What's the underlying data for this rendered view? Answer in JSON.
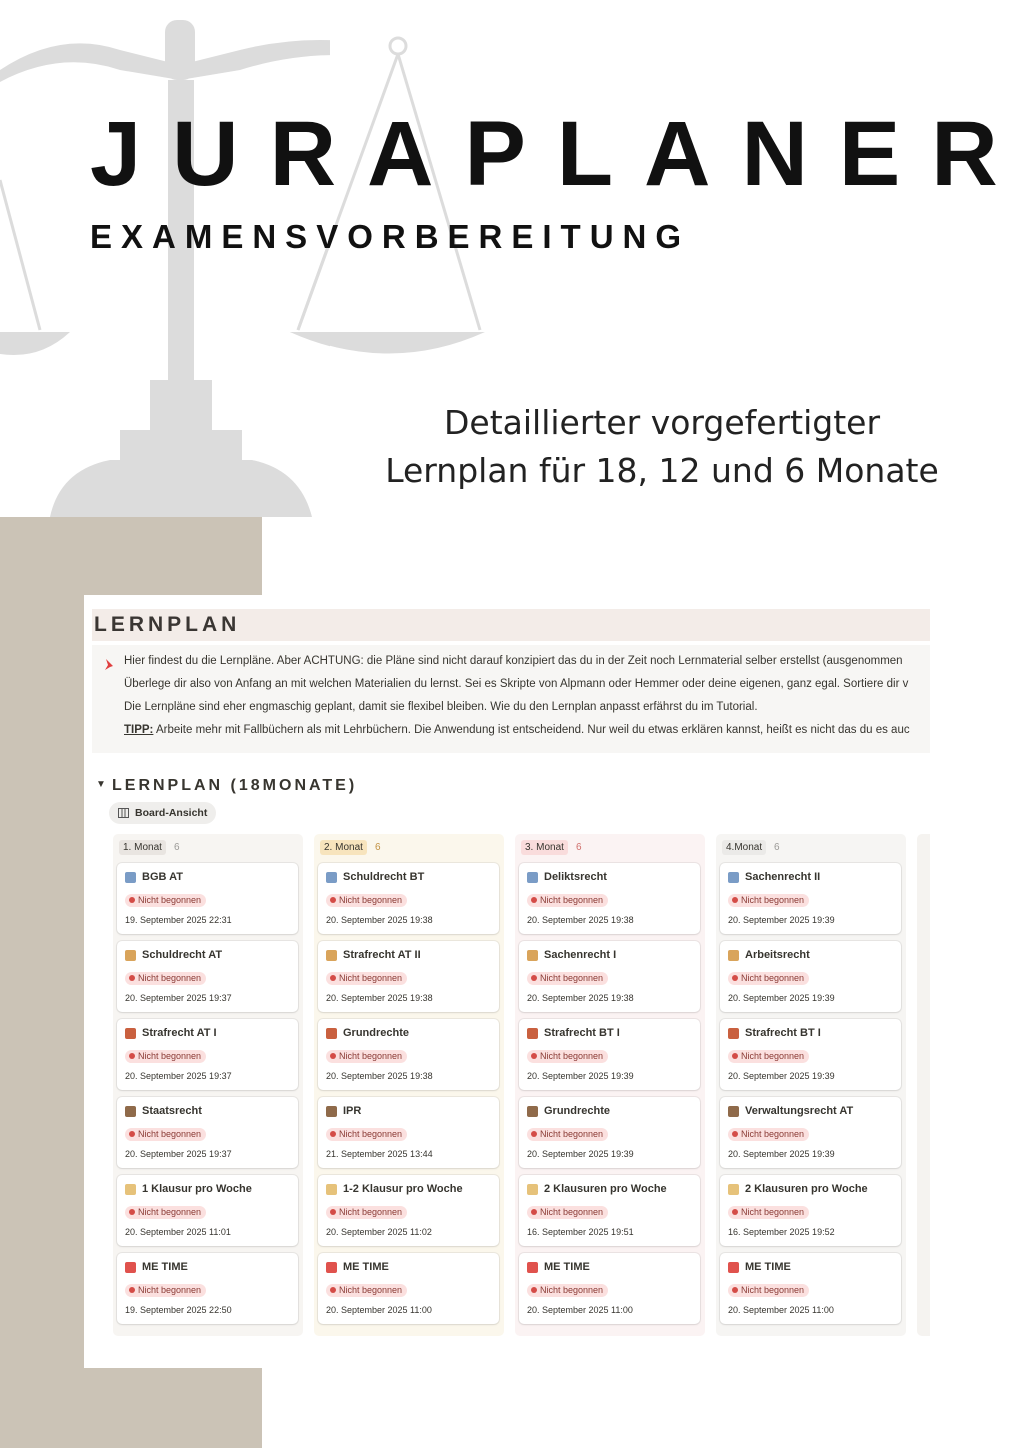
{
  "header": {
    "title": "JURAPLANER",
    "subtitle": "EXAMENSVORBEREITUNG",
    "tagline": [
      "Detaillierter vorgefertigter",
      "Lernplan für 18, 12 und 6 Monate"
    ]
  },
  "screenshot": {
    "heading": "LERNPLAN",
    "callout": {
      "lines": [
        "Hier findest du die Lernpläne. Aber ACHTUNG: die Pläne sind nicht darauf konzipiert das du in der Zeit noch Lernmaterial selber erstellst (ausgenommen",
        "Überlege dir also von Anfang an mit welchen Materialien du lernst. Sei es Skripte von Alpmann oder Hemmer oder deine eigenen, ganz egal. Sortiere dir v",
        "Die Lernpläne sind eher engmaschig geplant, damit sie flexibel bleiben. Wie du den Lernplan anpasst erfährst du im Tutorial."
      ],
      "tip_label": "TIPP:",
      "tip_text": "Arbeite mehr mit Fallbüchern als mit Lehrbüchern. Die Anwendung ist entscheidend. Nur weil du etwas erklären kannst, heißt es nicht das du es auc"
    },
    "section": "LERNPLAN (18MONATE)",
    "view": "Board-Ansicht",
    "columns": [
      {
        "name": "1. Monat",
        "count": 6,
        "cards": [
          {
            "title": "BGB AT",
            "status": "Nicht begonnen",
            "date": "19. September 2025 22:31"
          },
          {
            "title": "Schuldrecht AT",
            "status": "Nicht begonnen",
            "date": "20. September 2025 19:37"
          },
          {
            "title": "Strafrecht AT I",
            "status": "Nicht begonnen",
            "date": "20. September 2025 19:37"
          },
          {
            "title": "Staatsrecht",
            "status": "Nicht begonnen",
            "date": "20. September 2025 19:37"
          },
          {
            "title": "1 Klausur pro Woche",
            "status": "Nicht begonnen",
            "date": "20. September 2025 11:01"
          },
          {
            "title": "ME TIME",
            "status": "Nicht begonnen",
            "date": "19. September 2025 22:50"
          }
        ]
      },
      {
        "name": "2. Monat",
        "count": 6,
        "cards": [
          {
            "title": "Schuldrecht BT",
            "status": "Nicht begonnen",
            "date": "20. September 2025 19:38"
          },
          {
            "title": "Strafrecht AT II",
            "status": "Nicht begonnen",
            "date": "20. September 2025 19:38"
          },
          {
            "title": "Grundrechte",
            "status": "Nicht begonnen",
            "date": "20. September 2025 19:38"
          },
          {
            "title": "IPR",
            "status": "Nicht begonnen",
            "date": "21. September 2025 13:44"
          },
          {
            "title": "1-2 Klausur pro Woche",
            "status": "Nicht begonnen",
            "date": "20. September 2025 11:02"
          },
          {
            "title": "ME TIME",
            "status": "Nicht begonnen",
            "date": "20. September 2025 11:00"
          }
        ]
      },
      {
        "name": "3. Monat",
        "count": 6,
        "cards": [
          {
            "title": "Deliktsrecht",
            "status": "Nicht begonnen",
            "date": "20. September 2025 19:38"
          },
          {
            "title": "Sachenrecht I",
            "status": "Nicht begonnen",
            "date": "20. September 2025 19:38"
          },
          {
            "title": "Strafrecht BT I",
            "status": "Nicht begonnen",
            "date": "20. September 2025 19:39"
          },
          {
            "title": "Grundrechte",
            "status": "Nicht begonnen",
            "date": "20. September 2025 19:39"
          },
          {
            "title": "2 Klausuren pro Woche",
            "status": "Nicht begonnen",
            "date": "16. September 2025 19:51"
          },
          {
            "title": "ME TIME",
            "status": "Nicht begonnen",
            "date": "20. September 2025 11:00"
          }
        ]
      },
      {
        "name": "4.Monat",
        "count": 6,
        "cards": [
          {
            "title": "Sachenrecht II",
            "status": "Nicht begonnen",
            "date": "20. September 2025 19:39"
          },
          {
            "title": "Arbeitsrecht",
            "status": "Nicht begonnen",
            "date": "20. September 2025 19:39"
          },
          {
            "title": "Strafrecht BT I",
            "status": "Nicht begonnen",
            "date": "20. September 2025 19:39"
          },
          {
            "title": "Verwaltungsrecht AT",
            "status": "Nicht begonnen",
            "date": "20. September 2025 19:39"
          },
          {
            "title": "2 Klausuren pro Woche",
            "status": "Nicht begonnen",
            "date": "16. September 2025 19:52"
          },
          {
            "title": "ME TIME",
            "status": "Nicht begonnen",
            "date": "20. September 2025 11:00"
          }
        ]
      }
    ]
  }
}
